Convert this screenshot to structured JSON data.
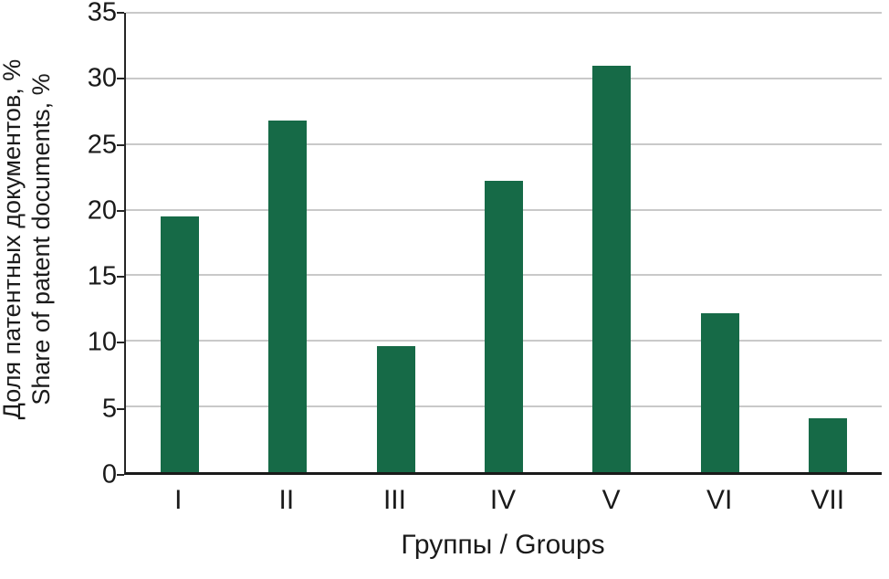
{
  "chart_data": {
    "type": "bar",
    "categories": [
      "I",
      "II",
      "III",
      "IV",
      "V",
      "VI",
      "VII"
    ],
    "values": [
      19.5,
      26.8,
      9.6,
      22.2,
      31.0,
      12.1,
      4.1
    ],
    "title": "",
    "xlabel": "Группы / Groups",
    "ylabel_ru": "Доля патентных документов, %",
    "ylabel_en": "Share of patent documents, %",
    "ylim": [
      0,
      35
    ],
    "ytick_step": 5,
    "ytick_labels": [
      "0",
      "5",
      "10",
      "15",
      "20",
      "25",
      "30",
      "35"
    ],
    "grid": true,
    "legend": "none",
    "bar_color": "#166a47",
    "gridline_color": "#c9c9c9",
    "axis_color": "#1a1a1a"
  }
}
